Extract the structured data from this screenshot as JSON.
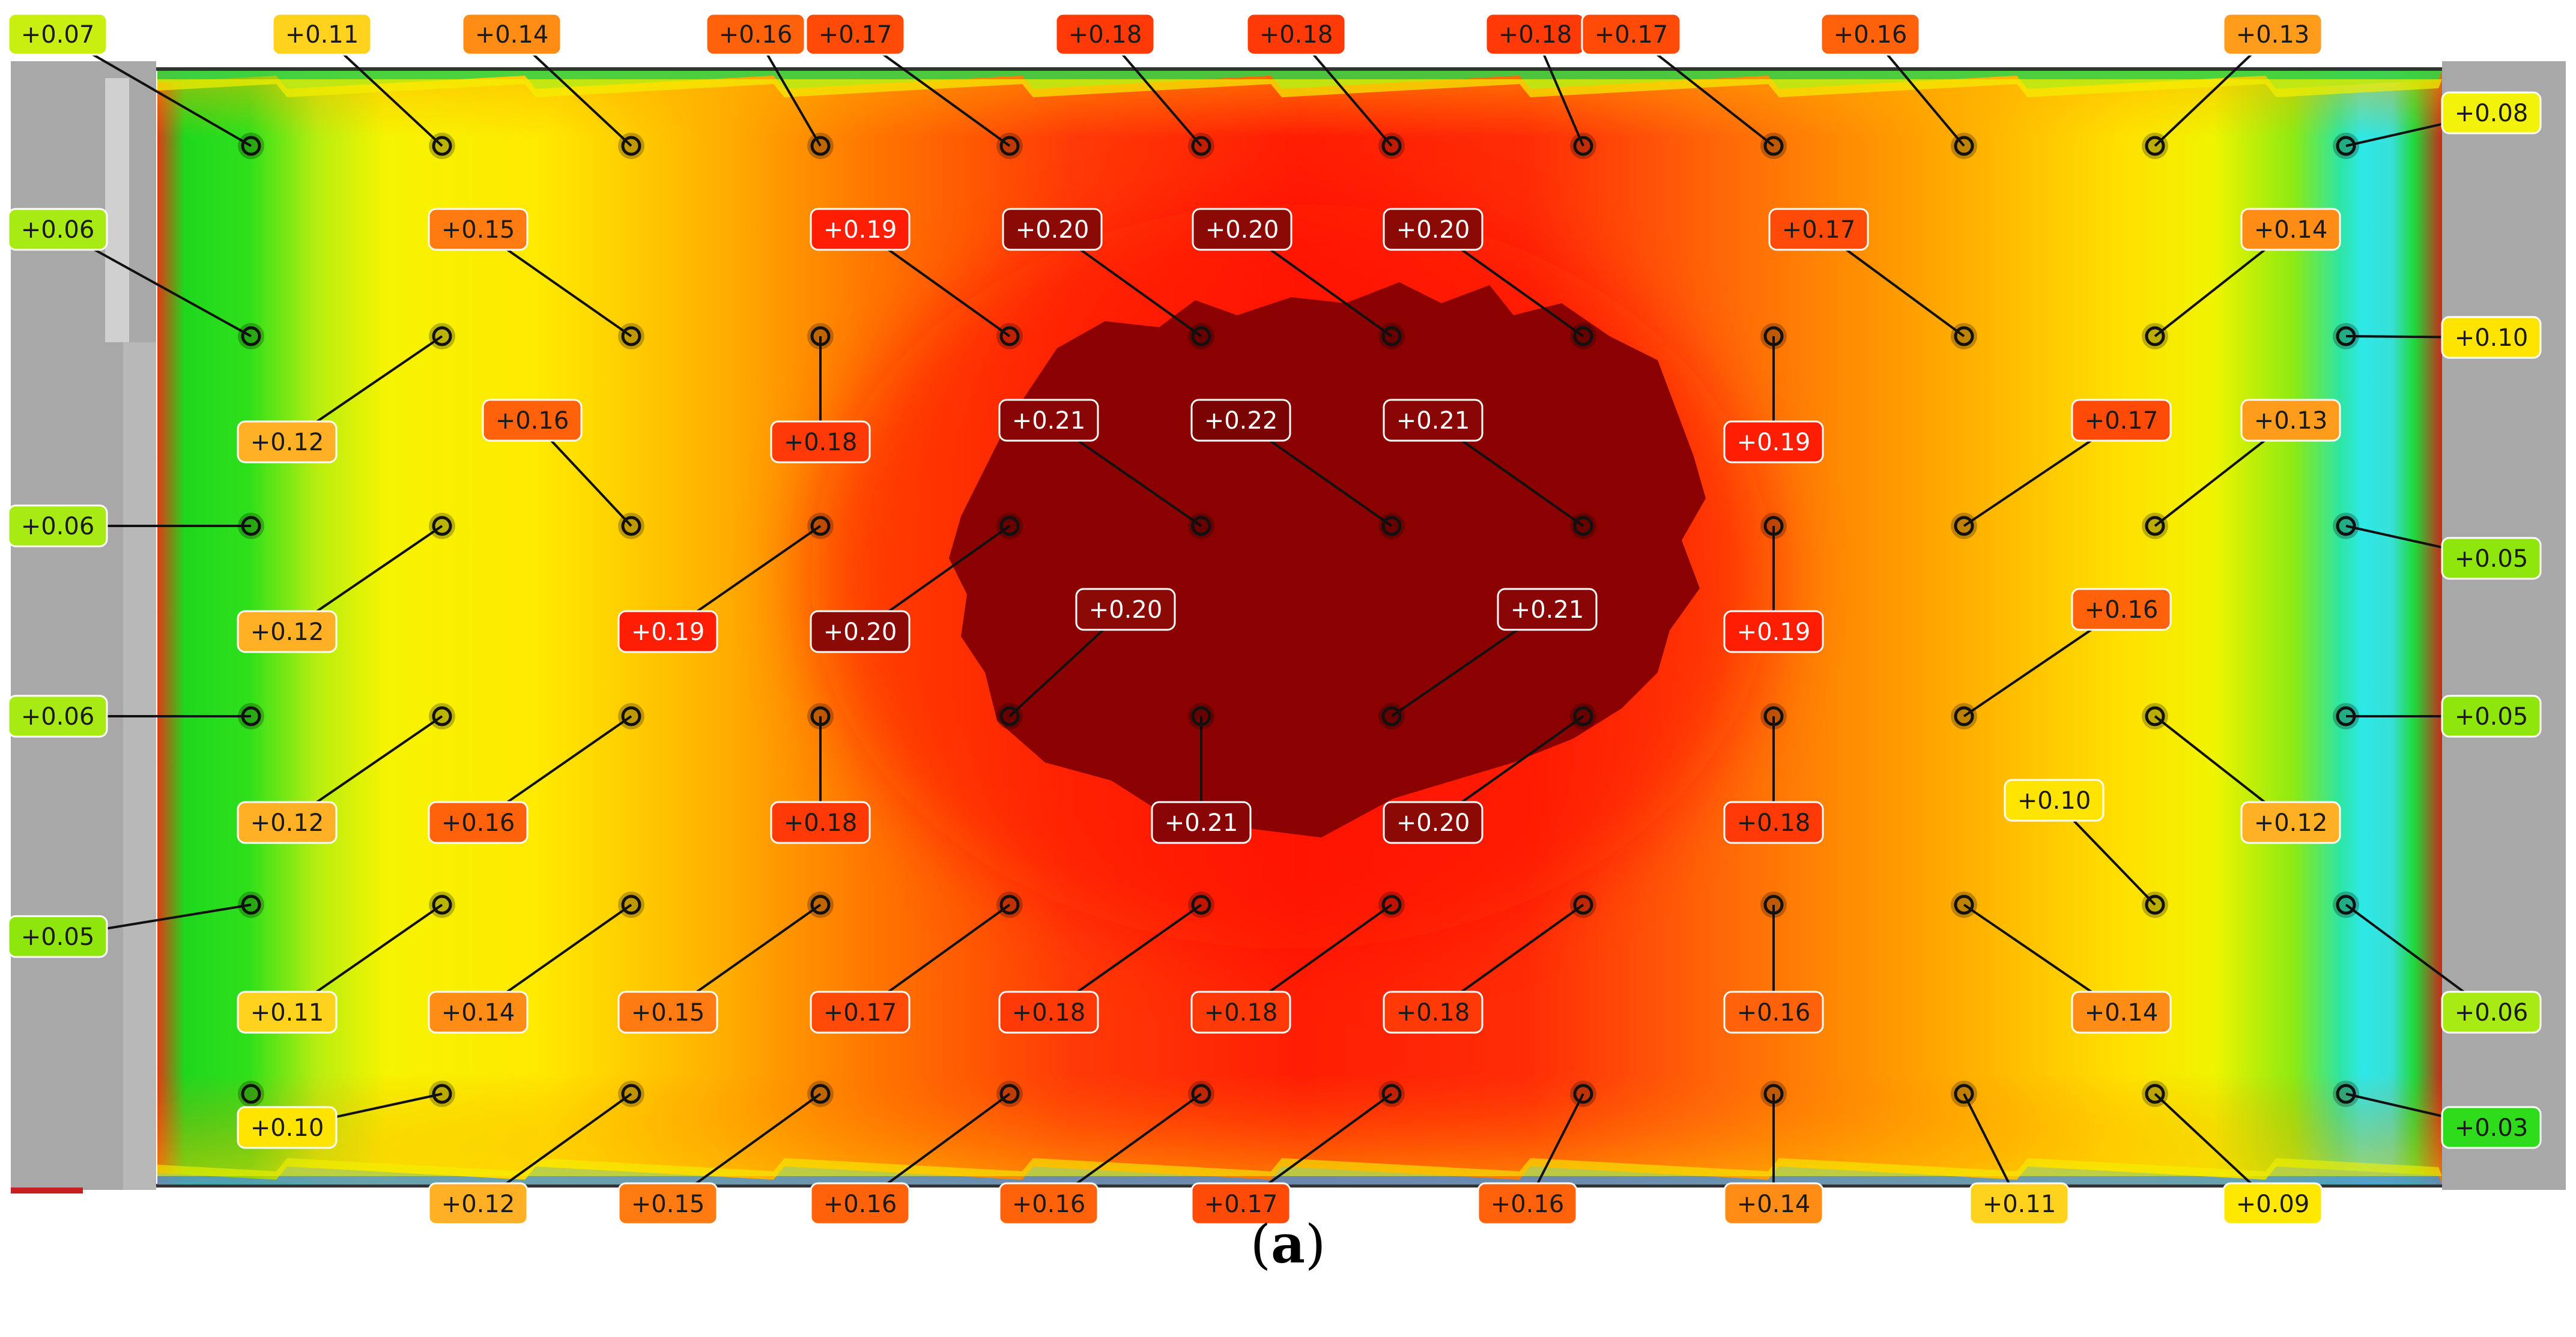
{
  "caption": {
    "open": "(",
    "letter": "a",
    "close": ")"
  },
  "colors": {
    "frame": "#a8a8a8",
    "frame_dark": "#7a7a7a",
    "hot_core": "#8b0000",
    "red": "#ff2a0a",
    "orange": "#ff7a00",
    "yellow": "#f4f000",
    "green": "#22d62a",
    "cyan": "#28e6e6",
    "leader": "#111111",
    "marker_fill": "#d8c400"
  },
  "legend_scale": [
    {
      "value": "+0.03",
      "color": "#2fdc1c"
    },
    {
      "value": "+0.05",
      "color": "#8ee60c"
    },
    {
      "value": "+0.06",
      "color": "#a8ea14"
    },
    {
      "value": "+0.07",
      "color": "#c8ef10"
    },
    {
      "value": "+0.08",
      "color": "#f2f20a"
    },
    {
      "value": "+0.09",
      "color": "#ffe800"
    },
    {
      "value": "+0.10",
      "color": "#ffe400"
    },
    {
      "value": "+0.11",
      "color": "#ffd21e"
    },
    {
      "value": "+0.12",
      "color": "#ffb024"
    },
    {
      "value": "+0.13",
      "color": "#ff9c1c"
    },
    {
      "value": "+0.14",
      "color": "#ff8c14"
    },
    {
      "value": "+0.15",
      "color": "#ff7a10"
    },
    {
      "value": "+0.16",
      "color": "#ff620a"
    },
    {
      "value": "+0.17",
      "color": "#ff4a08"
    },
    {
      "value": "+0.18",
      "color": "#ff3a06"
    },
    {
      "value": "+0.19",
      "color": "#ff1e04"
    },
    {
      "value": "+0.20",
      "color": "#8c0a06"
    },
    {
      "value": "+0.21",
      "color": "#8a0606"
    },
    {
      "value": "+0.22",
      "color": "#7a0404"
    }
  ],
  "labels": [
    "+0.07",
    "+0.11",
    "+0.14",
    "+0.16",
    "+0.17",
    "+0.18",
    "+0.18",
    "+0.18",
    "+0.17",
    "+0.16",
    "+0.13",
    "+0.08",
    "+0.06",
    "+0.15",
    "+0.19",
    "+0.20",
    "+0.20",
    "+0.20",
    "+0.17",
    "+0.14",
    "+0.10",
    "+0.12",
    "+0.16",
    "+0.18",
    "+0.21",
    "+0.22",
    "+0.21",
    "+0.19",
    "+0.17",
    "+0.13",
    "+0.06",
    "+0.05",
    "+0.12",
    "+0.19",
    "+0.20",
    "+0.20",
    "+0.21",
    "+0.19",
    "+0.16",
    "+0.06",
    "+0.05",
    "+0.12",
    "+0.16",
    "+0.18",
    "+0.21",
    "+0.20",
    "+0.18",
    "+0.10",
    "+0.12",
    "+0.05",
    "+0.11",
    "+0.14",
    "+0.15",
    "+0.17",
    "+0.18",
    "+0.18",
    "+0.18",
    "+0.16",
    "+0.14",
    "+0.06",
    "+0.10",
    "+0.03",
    "+0.12",
    "+0.15",
    "+0.16",
    "+0.16",
    "+0.17",
    "+0.16",
    "+0.14",
    "+0.11",
    "+0.09"
  ]
}
